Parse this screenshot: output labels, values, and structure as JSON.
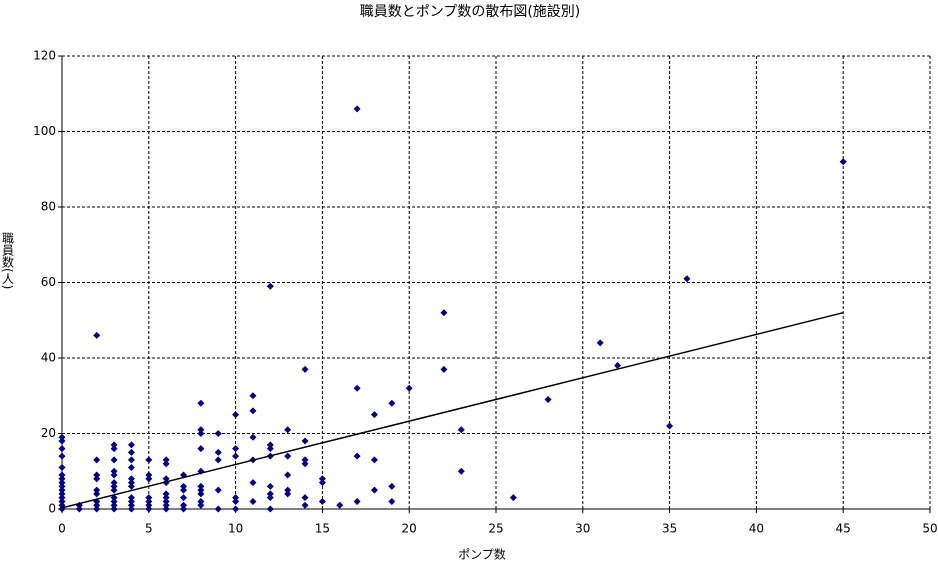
{
  "chart_data": {
    "type": "scatter",
    "title": "職員数とポンプ数の散布図(施設別)",
    "x_label": "ポンプ数",
    "y_label": "職員数(人)",
    "color": "#000080",
    "grid": true,
    "xlim": [
      0,
      50
    ],
    "xticks": [
      0,
      5,
      10,
      15,
      20,
      25,
      30,
      35,
      40,
      45,
      50
    ],
    "ylim": [
      0,
      120
    ],
    "yticks": [
      0,
      20,
      40,
      60,
      80,
      100,
      120
    ],
    "x": [
      0,
      0,
      0,
      0,
      0,
      0,
      0,
      0,
      0,
      0,
      0,
      0,
      0,
      0,
      0,
      1,
      1,
      2,
      2,
      2,
      2,
      2,
      2,
      2,
      2,
      2,
      3,
      3,
      3,
      3,
      3,
      3,
      3,
      3,
      3,
      3,
      3,
      3,
      4,
      4,
      4,
      4,
      4,
      4,
      4,
      4,
      4,
      4,
      4,
      5,
      5,
      5,
      5,
      5,
      5,
      5,
      6,
      6,
      6,
      6,
      6,
      6,
      6,
      6,
      6,
      7,
      7,
      7,
      7,
      7,
      7,
      8,
      8,
      8,
      8,
      8,
      8,
      8,
      8,
      8,
      8,
      9,
      9,
      9,
      9,
      9,
      10,
      10,
      10,
      10,
      10,
      10,
      11,
      11,
      11,
      11,
      11,
      11,
      12,
      12,
      12,
      12,
      12,
      12,
      12,
      12,
      13,
      13,
      13,
      13,
      13,
      14,
      14,
      14,
      14,
      14,
      14,
      15,
      15,
      15,
      16,
      17,
      17,
      17,
      17,
      18,
      18,
      18,
      19,
      19,
      19,
      20,
      22,
      22,
      23,
      23,
      26,
      28,
      31,
      32,
      35,
      36,
      45
    ],
    "values": [
      0,
      1,
      2,
      3,
      4,
      5,
      6,
      7,
      8,
      9,
      11,
      14,
      16,
      18,
      19,
      0,
      1,
      46,
      13,
      9,
      8,
      5,
      4,
      2,
      1,
      0,
      17,
      16,
      13,
      10,
      9,
      7,
      6,
      5,
      3,
      2,
      1,
      0,
      17,
      15,
      13,
      11,
      8,
      7,
      6,
      3,
      2,
      1,
      0,
      13,
      9,
      8,
      3,
      2,
      1,
      0,
      13,
      12,
      8,
      7,
      4,
      3,
      2,
      1,
      0,
      9,
      6,
      5,
      3,
      1,
      0,
      28,
      21,
      20,
      16,
      10,
      6,
      5,
      4,
      2,
      1,
      20,
      15,
      13,
      5,
      0,
      25,
      16,
      14,
      3,
      2,
      0,
      30,
      26,
      19,
      13,
      7,
      2,
      59,
      17,
      16,
      14,
      6,
      4,
      3,
      0,
      21,
      14,
      9,
      5,
      4,
      37,
      18,
      13,
      12,
      3,
      1,
      8,
      7,
      2,
      1,
      106,
      32,
      14,
      2,
      25,
      13,
      5,
      28,
      6,
      2,
      32,
      52,
      37,
      21,
      10,
      3,
      29,
      44,
      38,
      22,
      61,
      92
    ],
    "trendline": {
      "x": [
        0,
        45
      ],
      "y": [
        0.3,
        52
      ]
    }
  }
}
